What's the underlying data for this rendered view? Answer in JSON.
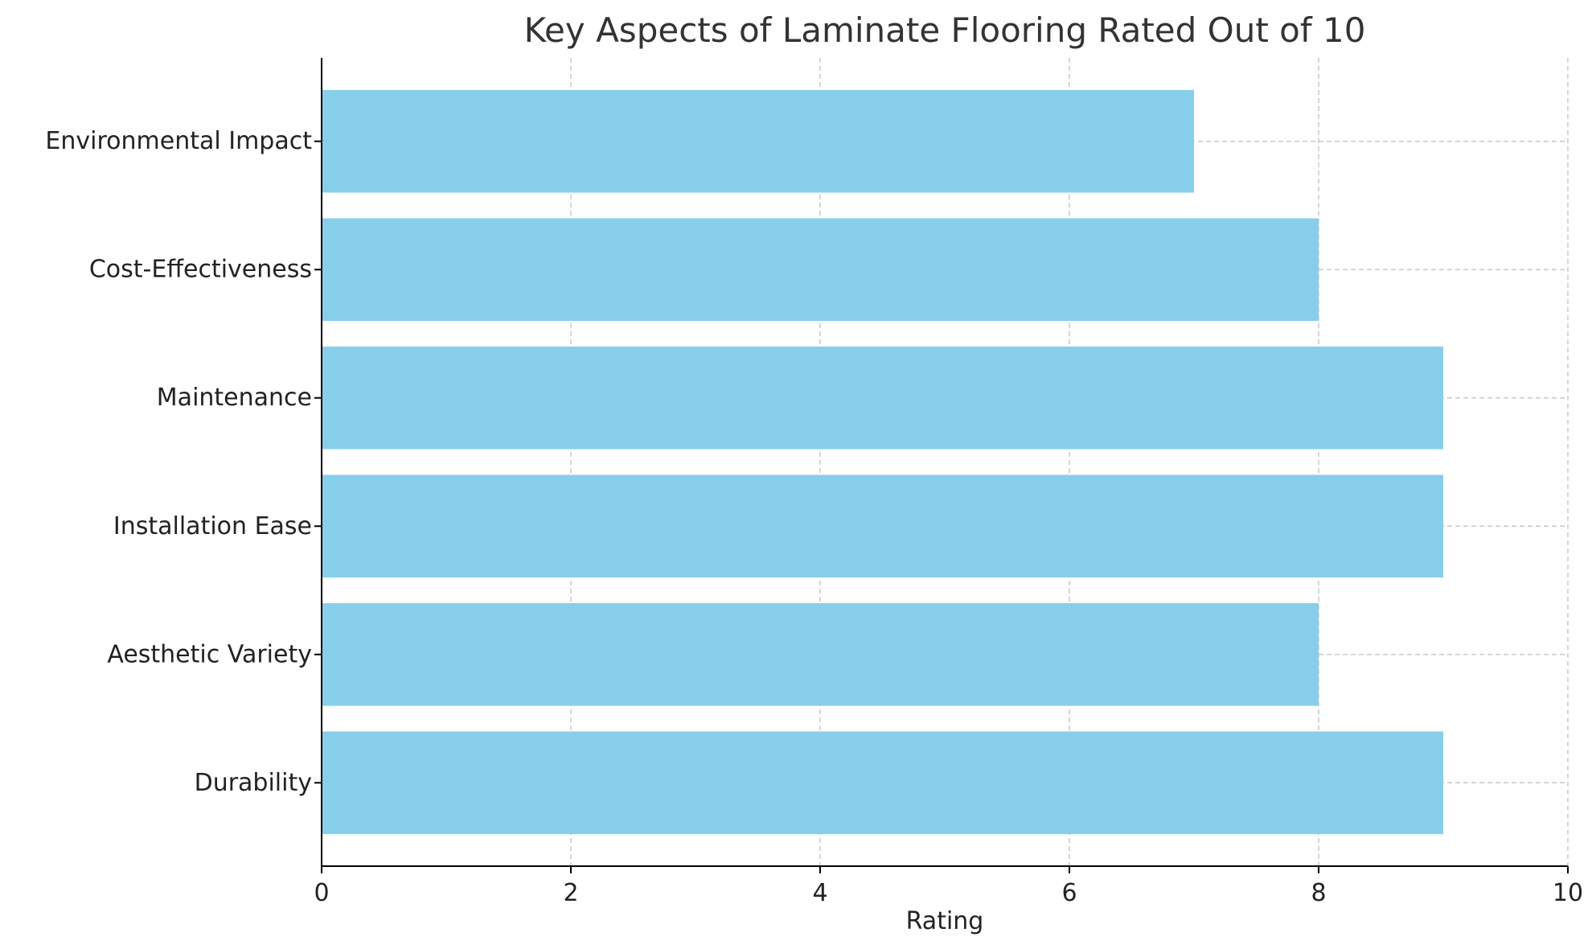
{
  "chart_data": {
    "type": "bar",
    "orientation": "horizontal",
    "title": "Key Aspects of Laminate Flooring Rated Out of 10",
    "xlabel": "Rating",
    "ylabel": "",
    "categories": [
      "Durability",
      "Aesthetic Variety",
      "Installation Ease",
      "Maintenance",
      "Cost-Effectiveness",
      "Environmental Impact"
    ],
    "values": [
      9,
      8,
      9,
      9,
      8,
      7
    ],
    "xlim": [
      0,
      10
    ],
    "xticks": [
      0,
      2,
      4,
      6,
      8,
      10
    ],
    "grid": true,
    "bar_color": "#87CEEB",
    "grid_color": "#c8c8c8",
    "axis_color": "#000000"
  }
}
